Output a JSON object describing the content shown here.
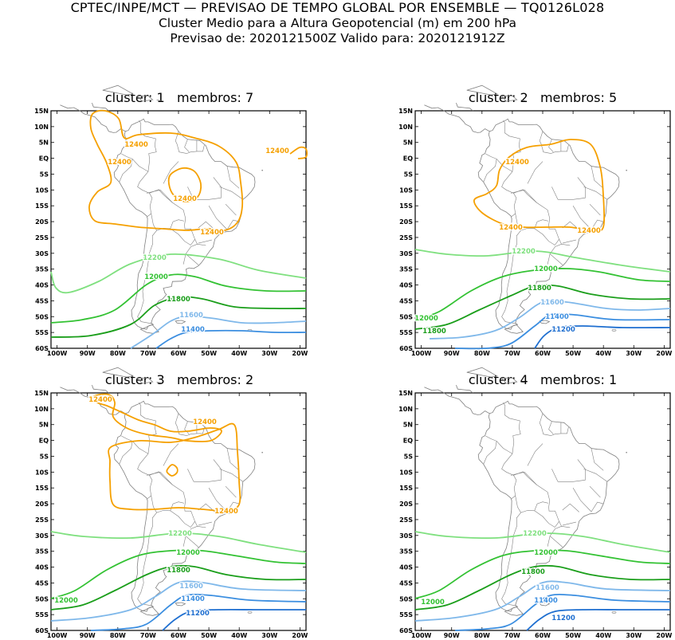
{
  "header": {
    "line1": "CPTEC/INPE/MCT — PREVISAO DE TEMPO GLOBAL POR ENSEMBLE — TQ0126L028",
    "line2": "Cluster Medio para a Altura Geopotencial (m) em 200 hPa",
    "line3": "Previsao de: 2020121500Z    Valido para: 2020121912Z"
  },
  "colors": {
    "c12400": "#f5a000",
    "c12200": "#7fe07f",
    "c12000": "#33c233",
    "c11800": "#1a9e1a",
    "c11600": "#7fb8ea",
    "c11400": "#3b8ee0",
    "c11200": "#1f6fd0",
    "coast": "#808080"
  },
  "axes": {
    "lat_labels": [
      "15N",
      "10N",
      "5N",
      "EQ",
      "5S",
      "10S",
      "15S",
      "20S",
      "25S",
      "30S",
      "35S",
      "40S",
      "45S",
      "50S",
      "55S",
      "60S"
    ],
    "lon_labels": [
      "100W",
      "90W",
      "80W",
      "70W",
      "60W",
      "50W",
      "40W",
      "30W",
      "20W"
    ]
  },
  "panels": [
    {
      "cluster_label": "cluster:",
      "cluster": "1",
      "members_label": "membros:",
      "members": "7",
      "contour_labels": [
        "12400",
        "12400",
        "12400",
        "12400",
        "12400",
        "12200",
        "12000",
        "11800",
        "11600",
        "11400"
      ]
    },
    {
      "cluster_label": "cluster:",
      "cluster": "2",
      "members_label": "membros:",
      "members": "5",
      "contour_labels": [
        "12400",
        "12400",
        "12400",
        "12200",
        "12000",
        "12000",
        "11800",
        "11800",
        "11600",
        "11400",
        "11200"
      ]
    },
    {
      "cluster_label": "cluster:",
      "cluster": "3",
      "members_label": "membros:",
      "members": "2",
      "contour_labels": [
        "12400",
        "12400",
        "12400",
        "12200",
        "12000",
        "12000",
        "11800",
        "11600",
        "11400",
        "11200"
      ]
    },
    {
      "cluster_label": "cluster:",
      "cluster": "4",
      "members_label": "membros:",
      "members": "1",
      "contour_labels": [
        "12200",
        "12000",
        "12000",
        "11800",
        "11600",
        "11400",
        "11200"
      ]
    }
  ]
}
